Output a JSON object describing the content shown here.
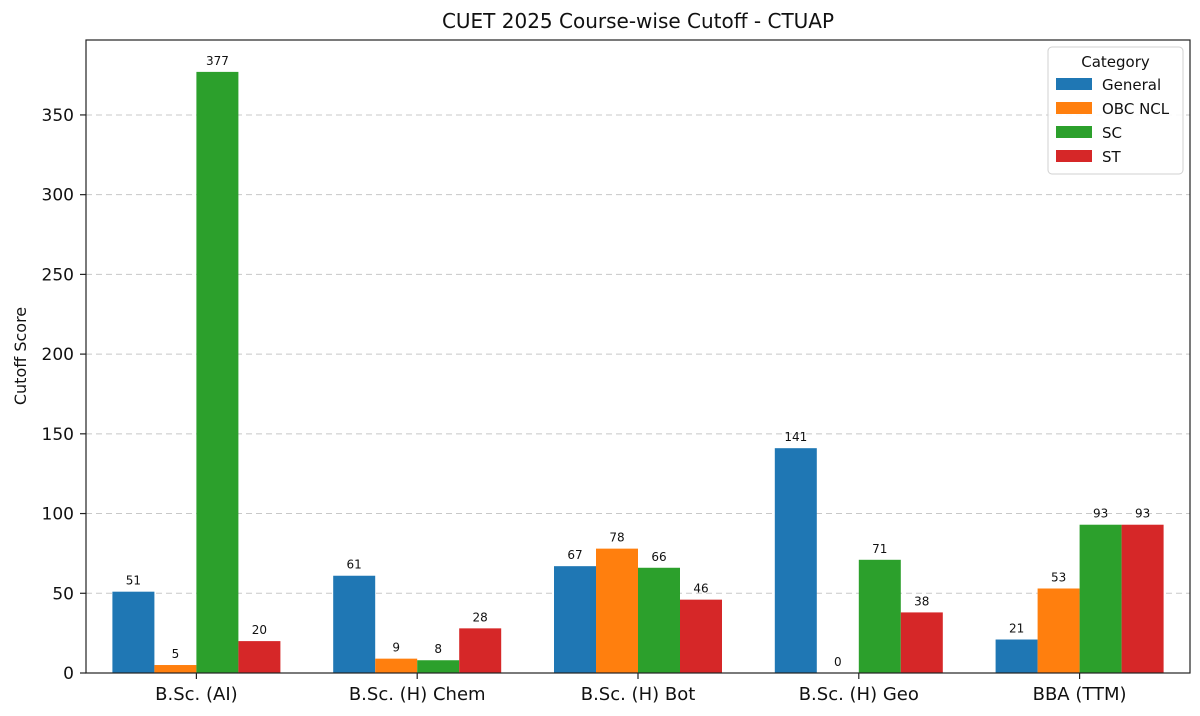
{
  "chart_data": {
    "type": "bar",
    "title": "CUET 2025 Course-wise Cutoff - CTUAP",
    "xlabel": "",
    "ylabel": "Cutoff Score",
    "ylim": [
      0,
      397
    ],
    "yticks": [
      0,
      50,
      100,
      150,
      200,
      250,
      300,
      350
    ],
    "grid": true,
    "legend": {
      "title": "Category",
      "placement": "top-right"
    },
    "categories": [
      "B.Sc. (AI)",
      "B.Sc. (H) Chem",
      "B.Sc. (H) Bot",
      "B.Sc. (H) Geo",
      "BBA (TTM)"
    ],
    "series": [
      {
        "name": "General",
        "color": "#1f77b4",
        "values": [
          51,
          61,
          67,
          141,
          21
        ]
      },
      {
        "name": "OBC NCL",
        "color": "#ff7f0e",
        "values": [
          5,
          9,
          78,
          0,
          53
        ]
      },
      {
        "name": "SC",
        "color": "#2ca02c",
        "values": [
          377,
          8,
          66,
          71,
          93
        ]
      },
      {
        "name": "ST",
        "color": "#d62728",
        "values": [
          20,
          28,
          46,
          38,
          93
        ]
      }
    ]
  }
}
